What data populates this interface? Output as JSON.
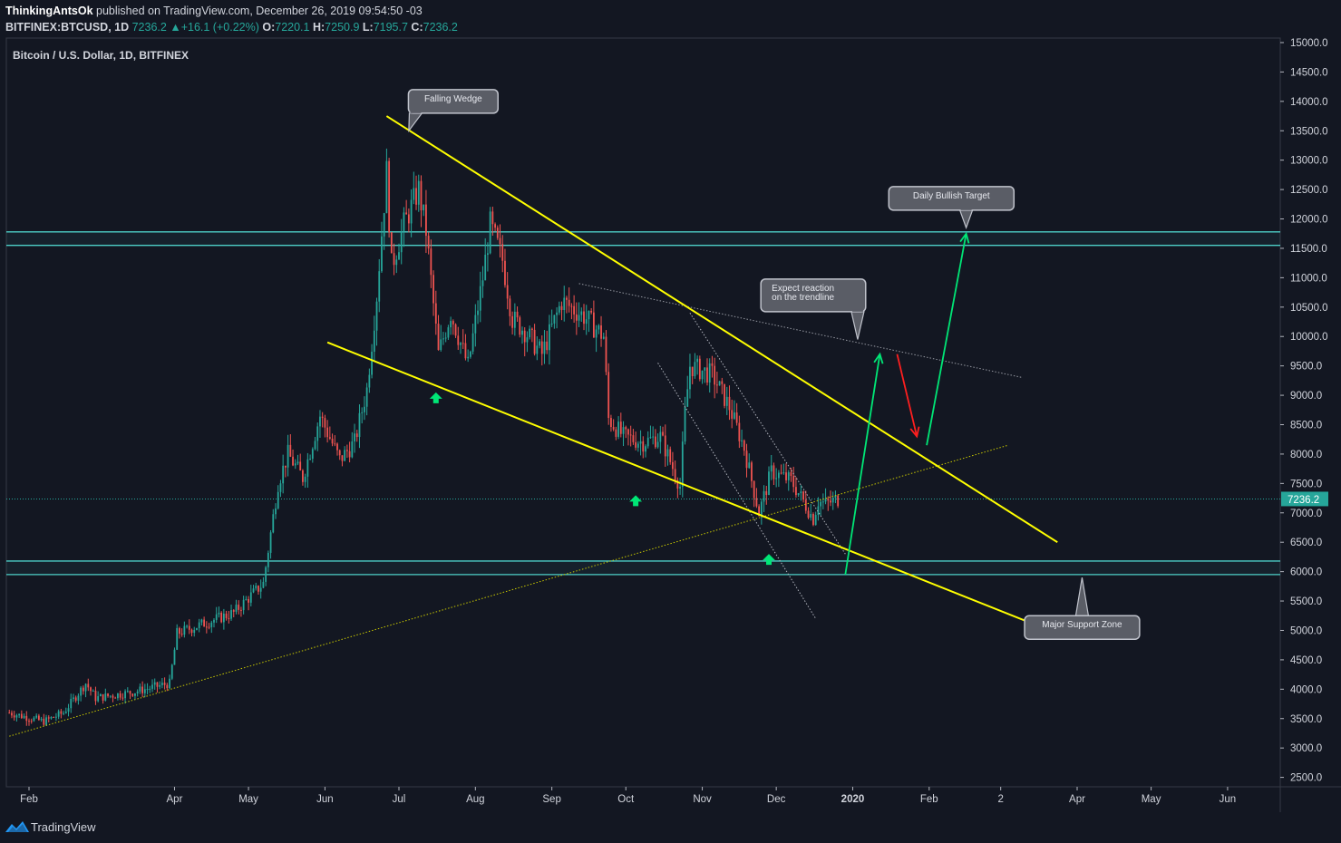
{
  "header": {
    "author": "ThinkingAntsOk",
    "published_text": "published on TradingView.com, December 26, 2019 09:54:50 -03",
    "symbol": "BITFINEX:BTCUSD, 1D",
    "last": "7236.2",
    "change_arrow": "▲",
    "change": "+16.1 (+0.22%)",
    "o_label": "O:",
    "o_value": "7220.1",
    "h_label": "H:",
    "h_value": "7250.9",
    "l_label": "L:",
    "l_value": "7195.7",
    "c_label": "C:",
    "c_value": "7236.2"
  },
  "footer": {
    "brand": "TradingView",
    "logo_icon": "tradingview-logo-icon"
  },
  "colors": {
    "background": "#131722",
    "up": "#26a69a",
    "down": "#ef5350",
    "wedge": "#ffff00",
    "support": "#4dd0c8",
    "arrow_green": "#00e676",
    "arrow_red": "#ff1f1f",
    "callout_bg": "#5a5d66"
  },
  "chart_data": {
    "type": "candlestick",
    "title": "Bitcoin / U.S. Dollar, 1D, BITFINEX",
    "xlabel": "",
    "ylabel": "",
    "ylim": [
      2300,
      15200
    ],
    "y_ticks": [
      "15000.0",
      "14500.0",
      "14000.0",
      "13500.0",
      "13000.0",
      "12500.0",
      "12000.0",
      "11500.0",
      "11000.0",
      "10500.0",
      "10000.0",
      "9500.0",
      "9000.0",
      "8500.0",
      "8000.0",
      "7500.0",
      "7000.0",
      "6500.0",
      "6000.0",
      "5500.0",
      "5000.0",
      "4500.0",
      "4000.0",
      "3500.0",
      "3000.0",
      "2500.0"
    ],
    "x_ticks": [
      {
        "label": "Feb",
        "date": "2019-02-01"
      },
      {
        "label": "Apr",
        "date": "2019-04-01"
      },
      {
        "label": "May",
        "date": "2019-05-01"
      },
      {
        "label": "Jun",
        "date": "2019-06-01"
      },
      {
        "label": "Jul",
        "date": "2019-07-01"
      },
      {
        "label": "Aug",
        "date": "2019-08-01"
      },
      {
        "label": "Sep",
        "date": "2019-09-01"
      },
      {
        "label": "Oct",
        "date": "2019-10-01"
      },
      {
        "label": "Nov",
        "date": "2019-11-01"
      },
      {
        "label": "Dec",
        "date": "2019-12-01"
      },
      {
        "label": "2020",
        "date": "2020-01-01"
      },
      {
        "label": "Feb",
        "date": "2020-02-01"
      },
      {
        "label": "2",
        "date": "2020-03-01"
      },
      {
        "label": "Apr",
        "date": "2020-04-01"
      },
      {
        "label": "May",
        "date": "2020-05-01"
      },
      {
        "label": "Jun",
        "date": "2020-06-01"
      }
    ],
    "price_label": "7236.2",
    "price_line": 7236.2,
    "price_path": [
      [
        "2019-01-24",
        3600
      ],
      [
        "2019-02-07",
        3450
      ],
      [
        "2019-02-15",
        3600
      ],
      [
        "2019-02-24",
        4100
      ],
      [
        "2019-02-28",
        3850
      ],
      [
        "2019-03-15",
        3950
      ],
      [
        "2019-03-30",
        4100
      ],
      [
        "2019-04-02",
        4950
      ],
      [
        "2019-04-15",
        5150
      ],
      [
        "2019-04-25",
        5300
      ],
      [
        "2019-05-07",
        5800
      ],
      [
        "2019-05-13",
        7500
      ],
      [
        "2019-05-17",
        8000
      ],
      [
        "2019-05-23",
        7600
      ],
      [
        "2019-05-30",
        8650
      ],
      [
        "2019-06-07",
        7900
      ],
      [
        "2019-06-13",
        8200
      ],
      [
        "2019-06-18",
        9100
      ],
      [
        "2019-06-22",
        10700
      ],
      [
        "2019-06-26",
        12800
      ],
      [
        "2019-06-28",
        11200
      ],
      [
        "2019-07-03",
        11900
      ],
      [
        "2019-07-09",
        12500
      ],
      [
        "2019-07-12",
        11800
      ],
      [
        "2019-07-17",
        9700
      ],
      [
        "2019-07-22",
        10400
      ],
      [
        "2019-07-29",
        9500
      ],
      [
        "2019-08-04",
        11000
      ],
      [
        "2019-08-07",
        11900
      ],
      [
        "2019-08-12",
        11300
      ],
      [
        "2019-08-16",
        10300
      ],
      [
        "2019-08-21",
        10100
      ],
      [
        "2019-08-28",
        9700
      ],
      [
        "2019-09-05",
        10600
      ],
      [
        "2019-09-14",
        10350
      ],
      [
        "2019-09-22",
        10000
      ],
      [
        "2019-09-24",
        8600
      ],
      [
        "2019-09-30",
        8300
      ],
      [
        "2019-10-08",
        8200
      ],
      [
        "2019-10-15",
        8300
      ],
      [
        "2019-10-23",
        7450
      ],
      [
        "2019-10-25",
        8700
      ],
      [
        "2019-10-27",
        9500
      ],
      [
        "2019-11-05",
        9350
      ],
      [
        "2019-11-12",
        8800
      ],
      [
        "2019-11-18",
        8100
      ],
      [
        "2019-11-24",
        7000
      ],
      [
        "2019-11-29",
        7700
      ],
      [
        "2019-12-07",
        7550
      ],
      [
        "2019-12-12",
        7200
      ],
      [
        "2019-12-16",
        6900
      ],
      [
        "2019-12-18",
        7200
      ],
      [
        "2019-12-21",
        7150
      ],
      [
        "2019-12-26",
        7236.2
      ]
    ],
    "drawings": {
      "wedge_upper": [
        [
          "2019-06-26",
          13750
        ],
        [
          "2020-03-24",
          6500
        ]
      ],
      "wedge_lower": [
        [
          "2019-06-02",
          9900
        ],
        [
          "2020-03-16",
          5080
        ]
      ],
      "long_trendline": [
        [
          "2019-01-24",
          3200
        ],
        [
          "2020-03-04",
          8150
        ]
      ],
      "trendline_dotted": [
        [
          "2019-09-12",
          10900
        ],
        [
          "2020-03-10",
          9300
        ]
      ],
      "channel_dotted_upper": [
        [
          "2019-10-27",
          10400
        ],
        [
          "2019-12-29",
          6300
        ]
      ],
      "channel_dotted_lower": [
        [
          "2019-10-14",
          9550
        ],
        [
          "2019-12-17",
          5200
        ]
      ],
      "resistance_zone": [
        11550,
        11780
      ],
      "support_zone": [
        5950,
        6180
      ],
      "green_up_markers": [
        [
          "2019-07-16",
          9050
        ],
        [
          "2019-10-05",
          7300
        ],
        [
          "2019-11-28",
          6300
        ]
      ],
      "projection_green": [
        [
          "2019-12-29",
          5950
        ],
        [
          "2020-01-12",
          9700
        ]
      ],
      "projection_red": [
        [
          "2020-01-19",
          9700
        ],
        [
          "2020-01-27",
          8300
        ]
      ],
      "projection_green_2": [
        [
          "2020-01-31",
          8150
        ],
        [
          "2020-02-16",
          11750
        ]
      ]
    },
    "annotations": [
      {
        "id": "falling-wedge",
        "text": "Falling Wedge",
        "date": "2019-07-23",
        "price": 14000,
        "pointer": [
          "2019-07-05",
          13500
        ]
      },
      {
        "id": "daily-target",
        "text": "Daily Bullish Target",
        "date": "2020-02-10",
        "price": 12350,
        "pointer": [
          "2020-02-16",
          11850
        ]
      },
      {
        "id": "trendline-reaction",
        "lines": [
          "Expect reaction",
          "on the trendline"
        ],
        "date": "2019-12-16",
        "price": 10700,
        "pointer": [
          "2020-01-03",
          9950
        ]
      },
      {
        "id": "major-support",
        "text": "Major Support Zone",
        "date": "2020-04-03",
        "price": 5050,
        "pointer": [
          "2020-04-03",
          5900
        ]
      }
    ]
  }
}
